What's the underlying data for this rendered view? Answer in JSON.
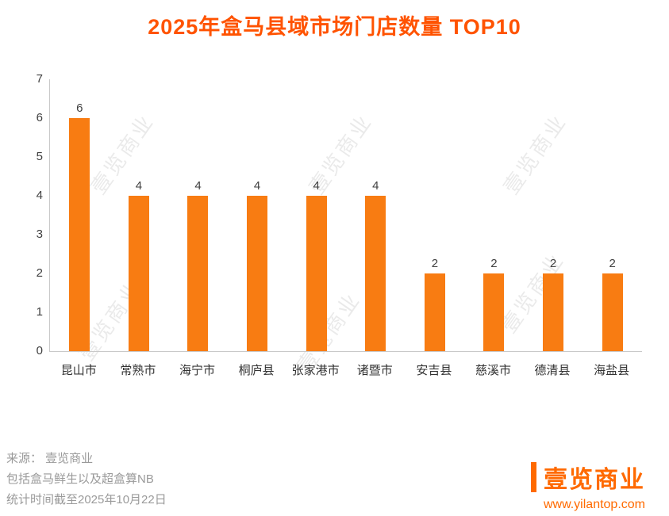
{
  "title": "2025年盒马县域市场门店数量 TOP10",
  "chart_data": {
    "type": "bar",
    "title": "2025年盒马县域市场门店数量 TOP10",
    "categories": [
      "昆山市",
      "常熟市",
      "海宁市",
      "桐庐县",
      "张家港市",
      "诸暨市",
      "安吉县",
      "慈溪市",
      "德清县",
      "海盐县"
    ],
    "values": [
      6,
      4,
      4,
      4,
      4,
      4,
      2,
      2,
      2,
      2
    ],
    "xlabel": "",
    "ylabel": "",
    "ylim": [
      0,
      7
    ],
    "yticks": [
      0,
      1,
      2,
      3,
      4,
      5,
      6,
      7
    ],
    "grid": false,
    "legend": false,
    "bar_color": "#F87C12"
  },
  "colors": {
    "title": "#FF5300",
    "bar": "#F87C12",
    "axis": "#C9C9C9",
    "labels": "#404040",
    "footer_text": "#9A9A9A",
    "watermark": "#D9D9D9",
    "brand_accent": "#FF6A00"
  },
  "watermark": {
    "text": "壹览商业"
  },
  "footer": {
    "source": "来源： 壹览商业",
    "note": "包括盒马鲜生以及超盒算NB",
    "date": "统计时间截至2025年10月22日"
  },
  "brand": {
    "logo_text": "壹览商业",
    "website": "www.yilantop.com"
  }
}
